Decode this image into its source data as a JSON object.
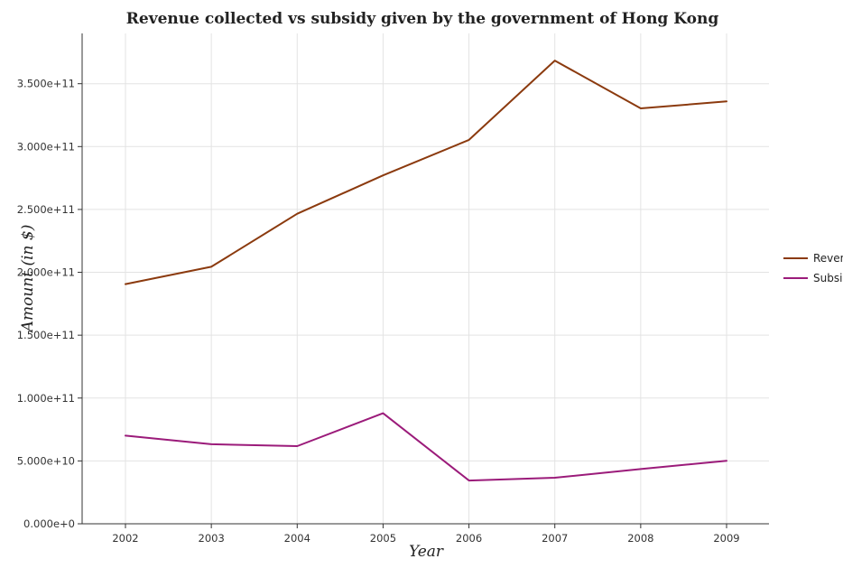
{
  "chart_data": {
    "type": "line",
    "title": "Revenue collected vs subsidy given by the government of Hong Kong",
    "xlabel": "Year",
    "ylabel": "Amount (in $)",
    "categories": [
      "2002",
      "2003",
      "2004",
      "2005",
      "2006",
      "2007",
      "2008",
      "2009"
    ],
    "series": [
      {
        "name": "Revenue",
        "color": "#8B3A0E",
        "values": [
          190600000000,
          204400000000,
          246600000000,
          277100000000,
          305300000000,
          368400000000,
          330400000000,
          335900000000
        ]
      },
      {
        "name": "Subsidies",
        "color": "#9B1B7A",
        "values": [
          70100000000,
          63300000000,
          61800000000,
          87900000000,
          34400000000,
          36600000000,
          43500000000,
          50100000000
        ]
      }
    ],
    "ylim": [
      0,
      390000000000
    ],
    "yticks": [
      0,
      50000000000,
      100000000000,
      150000000000,
      200000000000,
      250000000000,
      300000000000,
      350000000000
    ],
    "ytick_labels": [
      "0.000e+0",
      "5.000e+10",
      "1.000e+11",
      "1.500e+11",
      "2.000e+11",
      "2.500e+11",
      "3.000e+11",
      "3.500e+11"
    ],
    "grid": true,
    "legend_position": "right"
  }
}
